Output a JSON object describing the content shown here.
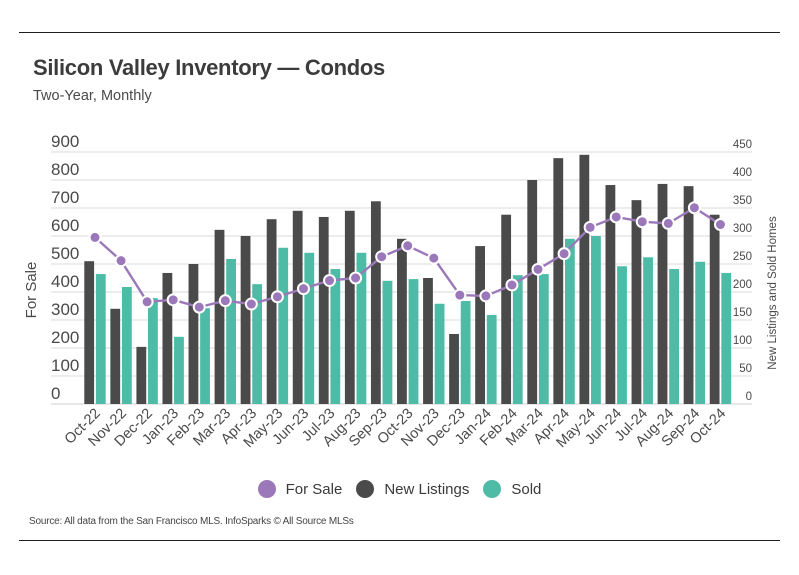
{
  "header": {
    "title": "Silicon Valley Inventory — Condos",
    "subtitle": "Two-Year, Monthly"
  },
  "footer": {
    "source": "Source:  All data from the San Francisco MLS. InfoSparks © All Source MLSs"
  },
  "colors": {
    "for_sale": "#9b78b9",
    "new_listings": "#4a4a4a",
    "sold": "#4dbba6",
    "grid": "#d9d9d9"
  },
  "legend": [
    {
      "key": "for_sale",
      "label": "For Sale"
    },
    {
      "key": "new_listings",
      "label": "New Listings"
    },
    {
      "key": "sold",
      "label": "Sold"
    }
  ],
  "chart_data": {
    "type": "bar+line",
    "title": "Silicon Valley Inventory — Condos",
    "subtitle": "Two-Year, Monthly",
    "xlabel": "",
    "ylabel": "For Sale",
    "y2label": "New Listings and Sold Homes",
    "ylim": [
      0,
      900
    ],
    "y2lim": [
      0,
      450
    ],
    "yticks": [
      0,
      100,
      200,
      300,
      400,
      500,
      600,
      700,
      800,
      900
    ],
    "y2ticks": [
      0,
      50,
      100,
      150,
      200,
      250,
      300,
      350,
      400,
      450
    ],
    "grid": true,
    "legend_position": "bottom",
    "categories": [
      "Oct-22",
      "Nov-22",
      "Dec-22",
      "Jan-23",
      "Feb-23",
      "Mar-23",
      "Apr-23",
      "May-23",
      "Jun-23",
      "Jul-23",
      "Aug-23",
      "Sep-23",
      "Oct-23",
      "Nov-23",
      "Dec-23",
      "Jan-24",
      "Feb-24",
      "Mar-24",
      "Apr-24",
      "May-24",
      "Jun-24",
      "Jul-24",
      "Aug-24",
      "Sep-24",
      "Oct-24"
    ],
    "series": [
      {
        "name": "For Sale",
        "type": "line",
        "axis": "left",
        "values": [
          595,
          512,
          365,
          372,
          346,
          369,
          357,
          383,
          412,
          441,
          450,
          526,
          565,
          521,
          389,
          386,
          425,
          481,
          537,
          631,
          668,
          651,
          645,
          701,
          641
        ]
      },
      {
        "name": "New Listings",
        "type": "bar",
        "axis": "right",
        "values": [
          255,
          170,
          102,
          234,
          250,
          311,
          300,
          330,
          345,
          334,
          345,
          362,
          295,
          225,
          125,
          282,
          338,
          400,
          439,
          445,
          391,
          364,
          393,
          389,
          338
        ]
      },
      {
        "name": "Sold",
        "type": "bar",
        "axis": "right",
        "values": [
          232,
          209,
          189,
          120,
          171,
          259,
          214,
          279,
          270,
          241,
          270,
          220,
          223,
          179,
          184,
          159,
          230,
          232,
          295,
          300,
          246,
          262,
          241,
          254,
          234
        ]
      }
    ]
  }
}
